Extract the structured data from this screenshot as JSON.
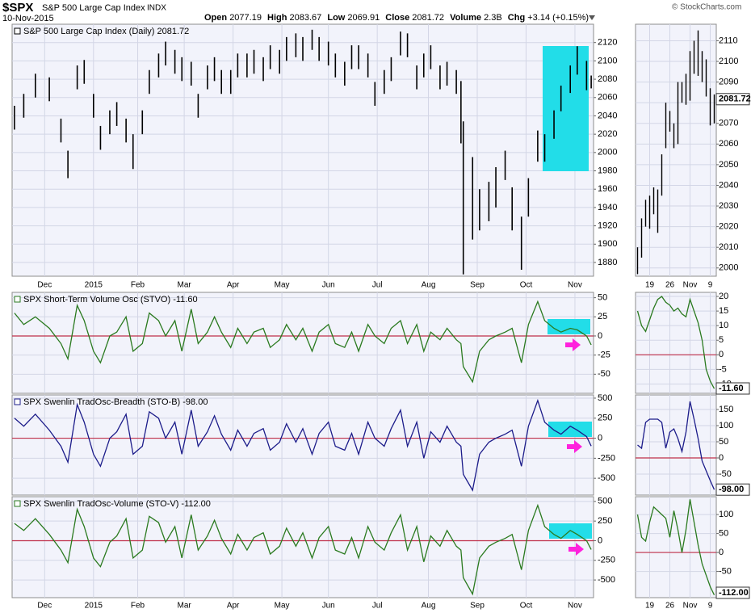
{
  "header": {
    "symbol": "$SPX",
    "name": "S&P 500 Large Cap Index",
    "exchange": "INDX",
    "date": "10-Nov-2015",
    "credit": "© StockCharts.com",
    "quote": [
      {
        "label": "Open",
        "value": "2077.19"
      },
      {
        "label": "High",
        "value": "2083.67"
      },
      {
        "label": "Low",
        "value": "2069.91"
      },
      {
        "label": "Close",
        "value": "2081.72"
      },
      {
        "label": "Volume",
        "value": "2.3B"
      },
      {
        "label": "Chg",
        "value": "+3.14 (+0.15%)"
      }
    ]
  },
  "chart_data": [
    {
      "type": "ohlc",
      "title": "S&P 500 Large Cap Index (Daily) 2081.72",
      "color": "#000000",
      "xlim": [
        0,
        250
      ],
      "xticks": [
        {
          "value": 14,
          "label": "Dec"
        },
        {
          "value": 35,
          "label": "2015"
        },
        {
          "value": 54,
          "label": "Feb"
        },
        {
          "value": 74,
          "label": "Mar"
        },
        {
          "value": 95,
          "label": "Apr"
        },
        {
          "value": 116,
          "label": "May"
        },
        {
          "value": 136,
          "label": "Jun"
        },
        {
          "value": 157,
          "label": "Jul"
        },
        {
          "value": 179,
          "label": "Aug"
        },
        {
          "value": 200,
          "label": "Sep"
        },
        {
          "value": 221,
          "label": "Oct"
        },
        {
          "value": 242,
          "label": "Nov"
        }
      ],
      "x": [
        1,
        5,
        10,
        16,
        21,
        24,
        28,
        31,
        35,
        38,
        42,
        45,
        49,
        52,
        56,
        59,
        63,
        66,
        70,
        73,
        77,
        80,
        84,
        87,
        90,
        94,
        97,
        101,
        104,
        108,
        111,
        115,
        118,
        122,
        125,
        129,
        132,
        136,
        139,
        143,
        146,
        149,
        153,
        156,
        160,
        163,
        167,
        170,
        174,
        177,
        180,
        184,
        187,
        191,
        193,
        194,
        198,
        201,
        205,
        208,
        212,
        215,
        219,
        222,
        226,
        229,
        233,
        236,
        240,
        243,
        247,
        249
      ],
      "high": [
        2051,
        2064,
        2086,
        2082,
        2037,
        2002,
        2095,
        2101,
        2064,
        2029,
        2046,
        2055,
        2037,
        2020,
        2046,
        2090,
        2108,
        2121,
        2112,
        2104,
        2099,
        2064,
        2095,
        2104,
        2090,
        2090,
        2108,
        2108,
        2112,
        2104,
        2117,
        2112,
        2126,
        2130,
        2126,
        2134,
        2126,
        2121,
        2108,
        2099,
        2117,
        2117,
        2108,
        2077,
        2090,
        2104,
        2132,
        2130,
        2095,
        2108,
        2117,
        2095,
        2099,
        2090,
        2078,
        2034,
        1995,
        1960,
        1968,
        1984,
        2002,
        1962,
        1930,
        1972,
        2024,
        2020,
        2046,
        2073,
        2095,
        2116,
        2100,
        2084
      ],
      "low": [
        2025,
        2038,
        2060,
        2056,
        2011,
        1972,
        2069,
        2075,
        2038,
        2003,
        2020,
        2029,
        2011,
        1982,
        2020,
        2064,
        2082,
        2095,
        2086,
        2078,
        2073,
        2038,
        2069,
        2078,
        2064,
        2064,
        2082,
        2082,
        2086,
        2078,
        2091,
        2086,
        2100,
        2104,
        2100,
        2112,
        2100,
        2095,
        2082,
        2073,
        2091,
        2091,
        2082,
        2051,
        2064,
        2078,
        2106,
        2104,
        2069,
        2082,
        2091,
        2069,
        2073,
        2064,
        2010,
        1867,
        1905,
        1915,
        1925,
        1940,
        1970,
        1915,
        1872,
        1930,
        1990,
        1990,
        2015,
        2045,
        2065,
        2085,
        2068,
        2070
      ],
      "ylim": [
        1865,
        2140
      ],
      "yticks": [
        1880,
        1900,
        1920,
        1940,
        1960,
        1980,
        2000,
        2020,
        2040,
        2060,
        2080,
        2100,
        2120
      ],
      "grid": true
    },
    {
      "type": "line",
      "title": "SPX Short-Term Volume Osc (STVO) -11.60",
      "color": "#2a7a1f",
      "zero_line": 0,
      "zero_line_color": "#c0304a",
      "values": [
        30,
        15,
        25,
        10,
        -10,
        -30,
        40,
        20,
        -20,
        -35,
        0,
        5,
        25,
        -20,
        -10,
        30,
        20,
        0,
        20,
        -20,
        35,
        -10,
        5,
        25,
        5,
        -15,
        10,
        -10,
        5,
        10,
        -15,
        -5,
        15,
        -5,
        10,
        -20,
        5,
        15,
        -10,
        -15,
        5,
        -20,
        15,
        0,
        -10,
        10,
        20,
        -10,
        15,
        -20,
        5,
        -5,
        10,
        -5,
        -10,
        -40,
        -60,
        -20,
        -5,
        0,
        5,
        10,
        -35,
        15,
        45,
        20,
        10,
        5,
        10,
        8,
        0,
        -11.6
      ],
      "ylim": [
        -75,
        57
      ],
      "yticks": [
        50,
        25,
        0,
        -25,
        -50
      ],
      "grid": true
    },
    {
      "type": "line",
      "title": "SPX Swenlin TradOsc-Breadth (STO-B) -98.00",
      "color": "#1c1c8a",
      "zero_line": 0,
      "zero_line_color": "#c0304a",
      "values": [
        250,
        150,
        300,
        100,
        -100,
        -300,
        420,
        200,
        -200,
        -350,
        0,
        80,
        300,
        -200,
        -100,
        330,
        250,
        0,
        200,
        -200,
        350,
        -100,
        80,
        280,
        50,
        -150,
        100,
        -100,
        60,
        120,
        -150,
        -50,
        180,
        -50,
        120,
        -200,
        60,
        200,
        -100,
        -150,
        60,
        -200,
        200,
        0,
        -100,
        120,
        350,
        -100,
        200,
        -250,
        80,
        -50,
        150,
        -50,
        -100,
        -450,
        -650,
        -200,
        -50,
        0,
        50,
        100,
        -350,
        150,
        470,
        200,
        100,
        50,
        150,
        100,
        20,
        -98
      ],
      "ylim": [
        -710,
        540
      ],
      "yticks": [
        500,
        250,
        0,
        -250,
        -500
      ],
      "grid": true
    },
    {
      "type": "line",
      "title": "SPX Swenlin TradOsc-Volume (STO-V) -112.00",
      "color": "#2a7a1f",
      "zero_line": 0,
      "zero_line_color": "#c0304a",
      "values": [
        220,
        130,
        280,
        80,
        -120,
        -280,
        400,
        180,
        -220,
        -330,
        -20,
        60,
        280,
        -220,
        -120,
        310,
        230,
        -20,
        180,
        -220,
        330,
        -120,
        60,
        260,
        30,
        -170,
        80,
        -120,
        40,
        100,
        -170,
        -70,
        160,
        -70,
        100,
        -220,
        40,
        180,
        -120,
        -170,
        40,
        -220,
        180,
        -20,
        -120,
        100,
        330,
        -120,
        180,
        -270,
        60,
        -70,
        130,
        -70,
        -120,
        -470,
        -680,
        -220,
        -70,
        -20,
        30,
        80,
        -370,
        130,
        450,
        180,
        80,
        30,
        130,
        80,
        0,
        -112
      ],
      "ylim": [
        -725,
        560
      ],
      "yticks": [
        500,
        250,
        0,
        -250,
        -500
      ],
      "grid": true
    },
    {
      "type": "ohlc",
      "color": "#000000",
      "last_label": "2081.72",
      "categories": [
        null,
        null,
        null,
        "19",
        null,
        null,
        null,
        null,
        "26",
        null,
        null,
        null,
        null,
        "Nov",
        null,
        null,
        null,
        null,
        "9",
        null
      ],
      "high": [
        2010,
        2024,
        2033,
        2035,
        2039,
        2038,
        2055,
        2080,
        2076,
        2070,
        2090,
        2090,
        2094,
        2105,
        2110,
        2115,
        2105,
        2101,
        2087,
        2084
      ],
      "low": [
        1997,
        2005,
        2020,
        2019,
        2026,
        2017,
        2035,
        2058,
        2066,
        2058,
        2060,
        2080,
        2079,
        2081,
        2094,
        2093,
        2090,
        2083,
        2069,
        2070
      ],
      "ylim": [
        1996,
        2118
      ],
      "yticks": [
        2000,
        2010,
        2020,
        2030,
        2040,
        2050,
        2060,
        2070,
        2080,
        2090,
        2100,
        2110
      ],
      "grid": true
    },
    {
      "type": "line",
      "color": "#2a7a1f",
      "zero_line": 0,
      "zero_line_color": "#c0304a",
      "last_label": "-11.60",
      "values": [
        15,
        10,
        8,
        12,
        16,
        19,
        20,
        18,
        17,
        15,
        16,
        14,
        13,
        19,
        15,
        11,
        5,
        -5,
        -9,
        -11.6
      ],
      "ylim": [
        -13.2,
        21.4
      ],
      "yticks": [
        20,
        15,
        10,
        5,
        0,
        -5,
        -10
      ],
      "grid": true
    },
    {
      "type": "line",
      "color": "#1c1c8a",
      "zero_line": 0,
      "zero_line_color": "#c0304a",
      "last_label": "-98.00",
      "values": [
        40,
        30,
        110,
        120,
        120,
        120,
        110,
        30,
        80,
        90,
        60,
        20,
        80,
        175,
        120,
        60,
        -10,
        -40,
        -70,
        -98
      ],
      "ylim": [
        -115,
        195
      ],
      "yticks": [
        150,
        100,
        50,
        0,
        -50
      ],
      "grid": true
    },
    {
      "type": "line",
      "color": "#2a7a1f",
      "zero_line": 0,
      "zero_line_color": "#c0304a",
      "last_label": "-112.00",
      "values": [
        100,
        40,
        30,
        80,
        120,
        110,
        100,
        90,
        40,
        110,
        60,
        0,
        60,
        140,
        80,
        20,
        -30,
        -60,
        -90,
        -112
      ],
      "ylim": [
        -119,
        147
      ],
      "yticks": [
        100,
        50,
        0,
        -50
      ],
      "grid": true
    }
  ]
}
